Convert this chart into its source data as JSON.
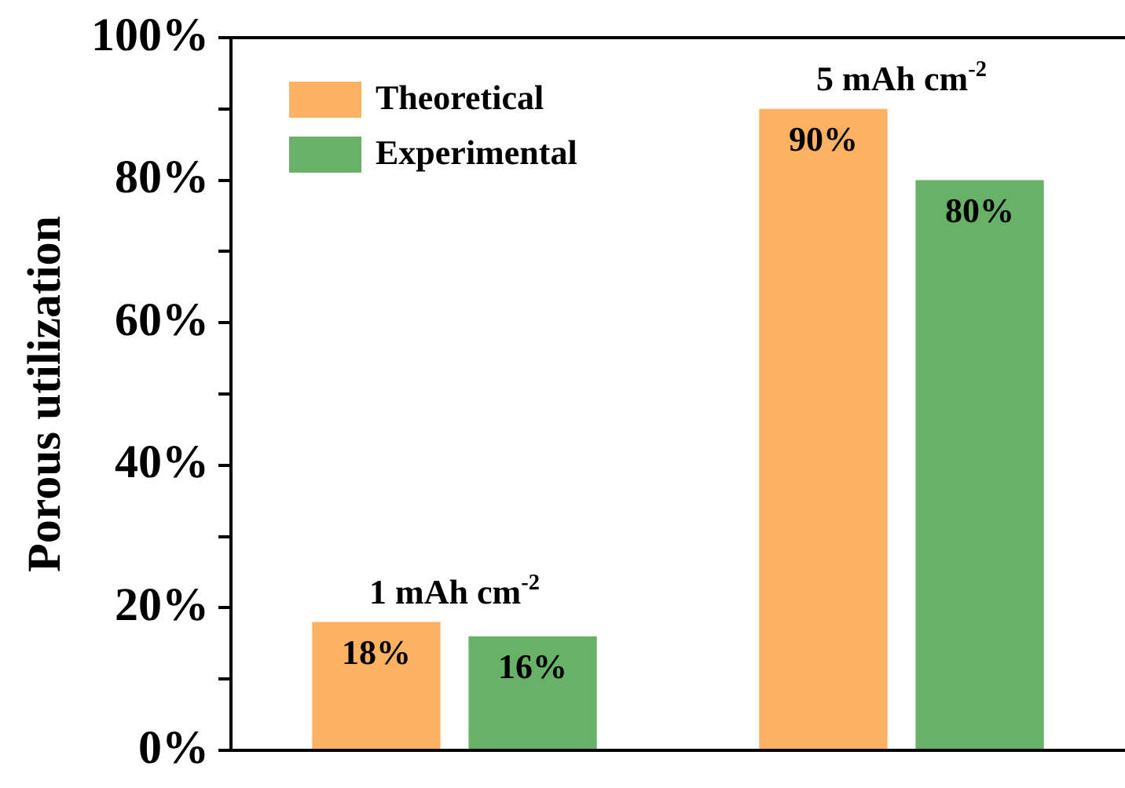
{
  "chart_data": {
    "type": "bar",
    "ylabel": "Porous utilization",
    "categories": [
      null,
      null
    ],
    "series": [
      {
        "name": "Theoretical",
        "color": "#fdb162",
        "values": [
          18,
          90
        ],
        "value_labels": [
          "18%",
          "90%"
        ]
      },
      {
        "name": "Experimental",
        "color": "#67b266",
        "values": [
          16,
          80
        ],
        "value_labels": [
          "16%",
          "80%"
        ]
      }
    ],
    "ylim": [
      0,
      100
    ],
    "yticks": [
      {
        "value": 0,
        "label": "0%"
      },
      {
        "value": 10,
        "label": null
      },
      {
        "value": 20,
        "label": "20%"
      },
      {
        "value": 30,
        "label": null
      },
      {
        "value": 40,
        "label": "40%"
      },
      {
        "value": 50,
        "label": null
      },
      {
        "value": 60,
        "label": "60%"
      },
      {
        "value": 70,
        "label": null
      },
      {
        "value": 80,
        "label": "80%"
      },
      {
        "value": 90,
        "label": null
      },
      {
        "value": 100,
        "label": "100%"
      }
    ],
    "annotations": [
      "1 mAh cm$^{-2}$",
      "5 mAh cm$^{-2}$"
    ],
    "legend": "top left",
    "grid": false
  }
}
